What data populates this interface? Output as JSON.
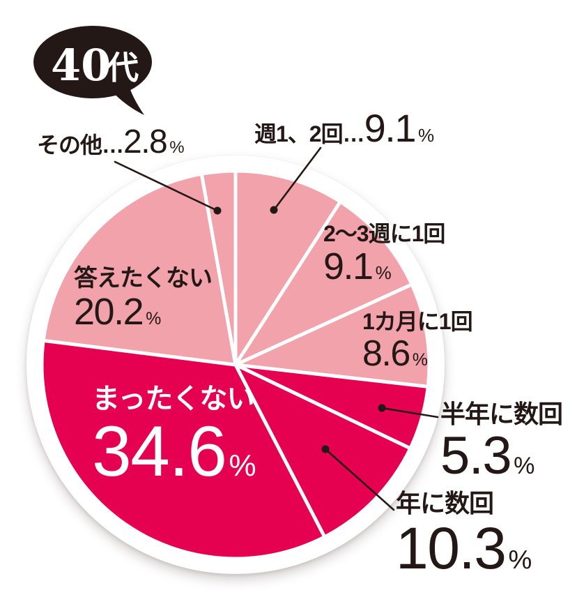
{
  "badge": {
    "number": "40",
    "suffix": "代"
  },
  "percent_sign": "%",
  "colors": {
    "pink": "#f1a2aa",
    "crimson": "#e60050",
    "ink": "#231815",
    "plate": "#ffffff",
    "badge_bg": "#231815",
    "badge_text": "#ffffff"
  },
  "callouts": {
    "shuu12": {
      "name": "週1、2回…",
      "value": "9.1"
    },
    "nishuu": {
      "name": "2〜3週に1回",
      "value": "9.1"
    },
    "tsuki": {
      "name": "1カ月に1回",
      "value": "8.6"
    },
    "hantoshi": {
      "name": "半年に数回",
      "value": "5.3"
    },
    "nen": {
      "name": "年に数回",
      "value": "10.3"
    },
    "mattaku": {
      "name": "まったくない",
      "value": "34.6"
    },
    "kotae": {
      "name": "答えたくない",
      "value": "20.2"
    },
    "sonota": {
      "name": "その他…",
      "value": "2.8"
    }
  },
  "chart_data": {
    "type": "pie",
    "title": "40代",
    "unit": "%",
    "start_angle_deg": 0,
    "direction": "clockwise",
    "keys": [
      "shuu12",
      "nishuu",
      "tsuki",
      "hantoshi",
      "nen",
      "mattaku",
      "kotae",
      "sonota"
    ],
    "categories": [
      "週1、2回",
      "2〜3週に1回",
      "1カ月に1回",
      "半年に数回",
      "年に数回",
      "まったくない",
      "答えたくない",
      "その他"
    ],
    "values": [
      9.1,
      9.1,
      8.6,
      5.3,
      10.3,
      34.6,
      20.2,
      2.8
    ],
    "slice_colors": [
      "#f1a2aa",
      "#f1a2aa",
      "#f1a2aa",
      "#e60050",
      "#e60050",
      "#e60050",
      "#f1a2aa",
      "#f1a2aa"
    ],
    "separator_color": "#ffffff",
    "legend": "none"
  }
}
